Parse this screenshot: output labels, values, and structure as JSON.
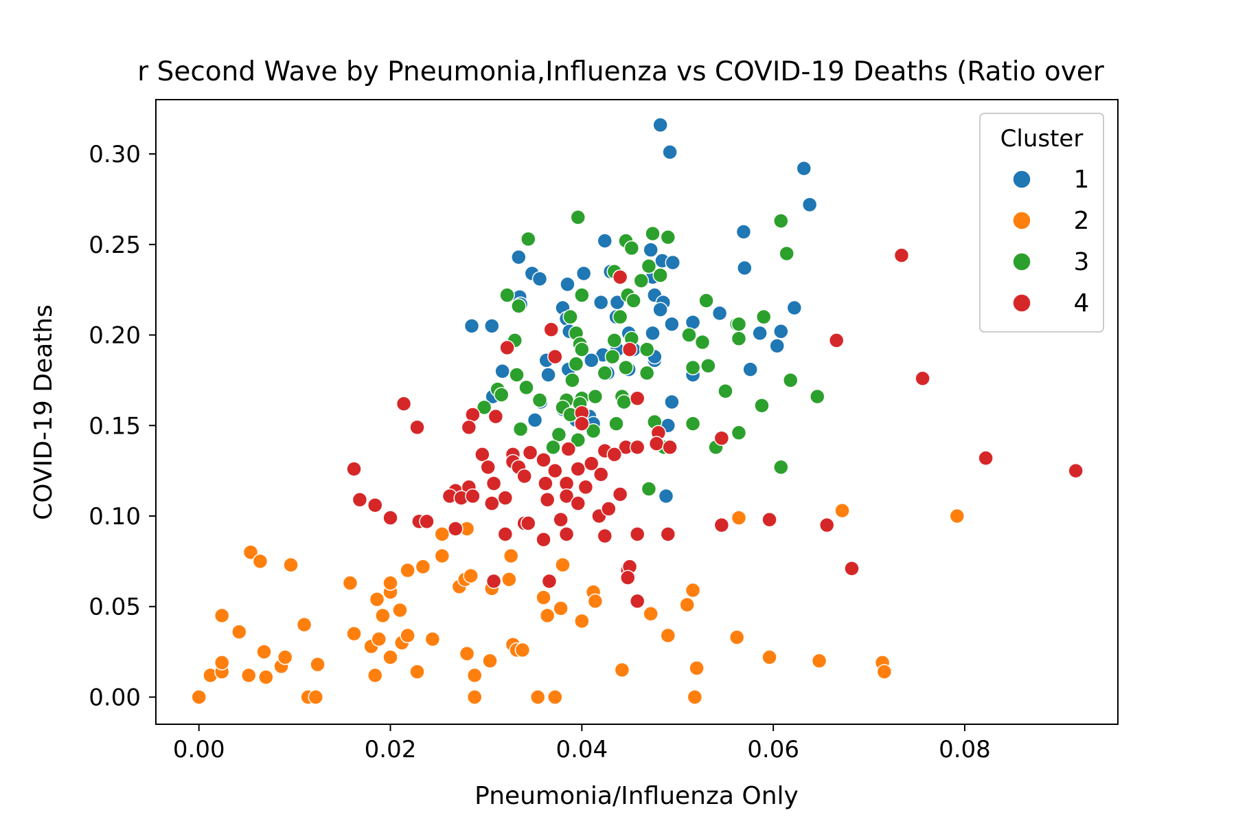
{
  "chart_data": {
    "type": "scatter",
    "title": "r Second Wave by Pneumonia,Influenza vs COVID-19 Deaths (Ratio over",
    "xlabel": "Pneumonia/Influenza Only",
    "ylabel": "COVID-19 Deaths",
    "xlim": [
      -0.0045,
      0.096
    ],
    "ylim": [
      -0.015,
      0.33
    ],
    "xticks": [
      {
        "value": 0.0,
        "label": "0.00"
      },
      {
        "value": 0.02,
        "label": "0.02"
      },
      {
        "value": 0.04,
        "label": "0.04"
      },
      {
        "value": 0.06,
        "label": "0.06"
      },
      {
        "value": 0.08,
        "label": "0.08"
      }
    ],
    "yticks": [
      {
        "value": 0.0,
        "label": "0.00"
      },
      {
        "value": 0.05,
        "label": "0.05"
      },
      {
        "value": 0.1,
        "label": "0.10"
      },
      {
        "value": 0.15,
        "label": "0.15"
      },
      {
        "value": 0.2,
        "label": "0.20"
      },
      {
        "value": 0.25,
        "label": "0.25"
      },
      {
        "value": 0.3,
        "label": "0.30"
      }
    ],
    "grid": false,
    "legend": {
      "title": "Cluster",
      "position": "top-right"
    },
    "series": [
      {
        "name": "1",
        "color": "#1f77b4",
        "points": [
          [
            0.0482,
            0.316
          ],
          [
            0.0492,
            0.301
          ],
          [
            0.0632,
            0.292
          ],
          [
            0.0638,
            0.272
          ],
          [
            0.0569,
            0.257
          ],
          [
            0.0424,
            0.252
          ],
          [
            0.0472,
            0.247
          ],
          [
            0.0334,
            0.243
          ],
          [
            0.057,
            0.237
          ],
          [
            0.0484,
            0.241
          ],
          [
            0.0495,
            0.24
          ],
          [
            0.0474,
            0.232
          ],
          [
            0.0402,
            0.234
          ],
          [
            0.0348,
            0.234
          ],
          [
            0.0356,
            0.231
          ],
          [
            0.0385,
            0.228
          ],
          [
            0.043,
            0.235
          ],
          [
            0.0476,
            0.222
          ],
          [
            0.0335,
            0.221
          ],
          [
            0.0336,
            0.217
          ],
          [
            0.042,
            0.218
          ],
          [
            0.0437,
            0.218
          ],
          [
            0.0485,
            0.218
          ],
          [
            0.038,
            0.215
          ],
          [
            0.0482,
            0.214
          ],
          [
            0.0622,
            0.215
          ],
          [
            0.0544,
            0.212
          ],
          [
            0.0436,
            0.21
          ],
          [
            0.0384,
            0.209
          ],
          [
            0.0494,
            0.206
          ],
          [
            0.0516,
            0.207
          ],
          [
            0.0387,
            0.202
          ],
          [
            0.0449,
            0.201
          ],
          [
            0.0474,
            0.201
          ],
          [
            0.0586,
            0.201
          ],
          [
            0.0608,
            0.202
          ],
          [
            0.0285,
            0.205
          ],
          [
            0.0306,
            0.205
          ],
          [
            0.0604,
            0.194
          ],
          [
            0.0437,
            0.192
          ],
          [
            0.0454,
            0.192
          ],
          [
            0.0422,
            0.189
          ],
          [
            0.0363,
            0.186
          ],
          [
            0.041,
            0.186
          ],
          [
            0.0476,
            0.186
          ],
          [
            0.0476,
            0.188
          ],
          [
            0.0386,
            0.181
          ],
          [
            0.0427,
            0.179
          ],
          [
            0.0449,
            0.181
          ],
          [
            0.0516,
            0.178
          ],
          [
            0.0365,
            0.178
          ],
          [
            0.0576,
            0.181
          ],
          [
            0.0317,
            0.18
          ],
          [
            0.0307,
            0.166
          ],
          [
            0.0494,
            0.163
          ],
          [
            0.0357,
            0.163
          ],
          [
            0.038,
            0.159
          ],
          [
            0.0408,
            0.155
          ],
          [
            0.0394,
            0.153
          ],
          [
            0.0351,
            0.153
          ],
          [
            0.0412,
            0.151
          ],
          [
            0.049,
            0.15
          ],
          [
            0.0488,
            0.111
          ]
        ]
      },
      {
        "name": "2",
        "color": "#ff7f0e",
        "points": [
          [
            0.0,
            0.0
          ],
          [
            0.0012,
            0.012
          ],
          [
            0.0024,
            0.014
          ],
          [
            0.0024,
            0.019
          ],
          [
            0.0024,
            0.045
          ],
          [
            0.0042,
            0.036
          ],
          [
            0.0052,
            0.012
          ],
          [
            0.0054,
            0.08
          ],
          [
            0.0064,
            0.075
          ],
          [
            0.0068,
            0.025
          ],
          [
            0.007,
            0.011
          ],
          [
            0.0086,
            0.017
          ],
          [
            0.009,
            0.022
          ],
          [
            0.0096,
            0.073
          ],
          [
            0.011,
            0.04
          ],
          [
            0.0114,
            0.0
          ],
          [
            0.0122,
            0.0
          ],
          [
            0.0124,
            0.018
          ],
          [
            0.0158,
            0.063
          ],
          [
            0.0162,
            0.035
          ],
          [
            0.018,
            0.028
          ],
          [
            0.0184,
            0.012
          ],
          [
            0.0186,
            0.054
          ],
          [
            0.0188,
            0.032
          ],
          [
            0.0192,
            0.045
          ],
          [
            0.02,
            0.058
          ],
          [
            0.02,
            0.063
          ],
          [
            0.02,
            0.022
          ],
          [
            0.021,
            0.048
          ],
          [
            0.0212,
            0.03
          ],
          [
            0.0218,
            0.034
          ],
          [
            0.0218,
            0.07
          ],
          [
            0.0228,
            0.014
          ],
          [
            0.0234,
            0.072
          ],
          [
            0.0244,
            0.032
          ],
          [
            0.0254,
            0.09
          ],
          [
            0.0254,
            0.078
          ],
          [
            0.0272,
            0.061
          ],
          [
            0.0278,
            0.065
          ],
          [
            0.028,
            0.024
          ],
          [
            0.028,
            0.093
          ],
          [
            0.0284,
            0.067
          ],
          [
            0.0288,
            0.012
          ],
          [
            0.0288,
            0.0
          ],
          [
            0.0304,
            0.02
          ],
          [
            0.0306,
            0.06
          ],
          [
            0.0324,
            0.065
          ],
          [
            0.0326,
            0.078
          ],
          [
            0.0328,
            0.029
          ],
          [
            0.0332,
            0.026
          ],
          [
            0.0338,
            0.026
          ],
          [
            0.0354,
            0.0
          ],
          [
            0.036,
            0.055
          ],
          [
            0.0364,
            0.045
          ],
          [
            0.0372,
            0.0
          ],
          [
            0.0378,
            0.049
          ],
          [
            0.038,
            0.073
          ],
          [
            0.04,
            0.042
          ],
          [
            0.0412,
            0.058
          ],
          [
            0.0414,
            0.053
          ],
          [
            0.0442,
            0.015
          ],
          [
            0.0472,
            0.046
          ],
          [
            0.049,
            0.034
          ],
          [
            0.051,
            0.051
          ],
          [
            0.0516,
            0.059
          ],
          [
            0.0518,
            0.0
          ],
          [
            0.052,
            0.016
          ],
          [
            0.0562,
            0.033
          ],
          [
            0.0564,
            0.099
          ],
          [
            0.0596,
            0.022
          ],
          [
            0.0648,
            0.02
          ],
          [
            0.0672,
            0.103
          ],
          [
            0.0714,
            0.019
          ],
          [
            0.0716,
            0.014
          ],
          [
            0.0792,
            0.1
          ]
        ]
      },
      {
        "name": "3",
        "color": "#2ca02c",
        "points": [
          [
            0.0396,
            0.265
          ],
          [
            0.0344,
            0.253
          ],
          [
            0.0474,
            0.256
          ],
          [
            0.0446,
            0.252
          ],
          [
            0.049,
            0.254
          ],
          [
            0.0452,
            0.248
          ],
          [
            0.0614,
            0.245
          ],
          [
            0.0608,
            0.263
          ],
          [
            0.0434,
            0.235
          ],
          [
            0.047,
            0.238
          ],
          [
            0.0482,
            0.233
          ],
          [
            0.0462,
            0.23
          ],
          [
            0.04,
            0.222
          ],
          [
            0.0322,
            0.222
          ],
          [
            0.0448,
            0.222
          ],
          [
            0.0454,
            0.219
          ],
          [
            0.053,
            0.219
          ],
          [
            0.0334,
            0.216
          ],
          [
            0.0388,
            0.21
          ],
          [
            0.044,
            0.21
          ],
          [
            0.059,
            0.21
          ],
          [
            0.0562,
            0.206
          ],
          [
            0.0564,
            0.206
          ],
          [
            0.0394,
            0.201
          ],
          [
            0.0512,
            0.2
          ],
          [
            0.0564,
            0.198
          ],
          [
            0.033,
            0.197
          ],
          [
            0.0434,
            0.197
          ],
          [
            0.0452,
            0.198
          ],
          [
            0.0398,
            0.195
          ],
          [
            0.0526,
            0.196
          ],
          [
            0.04,
            0.192
          ],
          [
            0.0468,
            0.192
          ],
          [
            0.0432,
            0.188
          ],
          [
            0.0424,
            0.179
          ],
          [
            0.0394,
            0.184
          ],
          [
            0.0516,
            0.182
          ],
          [
            0.0532,
            0.183
          ],
          [
            0.0446,
            0.182
          ],
          [
            0.0468,
            0.179
          ],
          [
            0.0332,
            0.178
          ],
          [
            0.039,
            0.175
          ],
          [
            0.0618,
            0.175
          ],
          [
            0.0342,
            0.171
          ],
          [
            0.0312,
            0.17
          ],
          [
            0.0316,
            0.167
          ],
          [
            0.055,
            0.169
          ],
          [
            0.0646,
            0.166
          ],
          [
            0.0356,
            0.164
          ],
          [
            0.0384,
            0.164
          ],
          [
            0.04,
            0.165
          ],
          [
            0.0414,
            0.166
          ],
          [
            0.0442,
            0.166
          ],
          [
            0.0444,
            0.163
          ],
          [
            0.0298,
            0.16
          ],
          [
            0.038,
            0.16
          ],
          [
            0.0398,
            0.162
          ],
          [
            0.0588,
            0.161
          ],
          [
            0.0388,
            0.156
          ],
          [
            0.0436,
            0.151
          ],
          [
            0.0476,
            0.152
          ],
          [
            0.0516,
            0.151
          ],
          [
            0.0336,
            0.148
          ],
          [
            0.0376,
            0.145
          ],
          [
            0.0412,
            0.147
          ],
          [
            0.0396,
            0.142
          ],
          [
            0.0564,
            0.146
          ],
          [
            0.037,
            0.138
          ],
          [
            0.0486,
            0.138
          ],
          [
            0.054,
            0.138
          ],
          [
            0.0608,
            0.127
          ],
          [
            0.047,
            0.115
          ]
        ]
      },
      {
        "name": "4",
        "color": "#d62728",
        "points": [
          [
            0.0734,
            0.244
          ],
          [
            0.044,
            0.232
          ],
          [
            0.0756,
            0.176
          ],
          [
            0.0666,
            0.197
          ],
          [
            0.0368,
            0.203
          ],
          [
            0.0322,
            0.193
          ],
          [
            0.0372,
            0.188
          ],
          [
            0.045,
            0.192
          ],
          [
            0.04,
            0.157
          ],
          [
            0.0214,
            0.162
          ],
          [
            0.0286,
            0.156
          ],
          [
            0.031,
            0.155
          ],
          [
            0.0228,
            0.149
          ],
          [
            0.0282,
            0.149
          ],
          [
            0.0458,
            0.165
          ],
          [
            0.04,
            0.151
          ],
          [
            0.048,
            0.146
          ],
          [
            0.0546,
            0.143
          ],
          [
            0.0478,
            0.14
          ],
          [
            0.0492,
            0.138
          ],
          [
            0.0446,
            0.138
          ],
          [
            0.0424,
            0.136
          ],
          [
            0.0434,
            0.134
          ],
          [
            0.0458,
            0.138
          ],
          [
            0.0296,
            0.134
          ],
          [
            0.0328,
            0.134
          ],
          [
            0.0346,
            0.135
          ],
          [
            0.036,
            0.131
          ],
          [
            0.0386,
            0.137
          ],
          [
            0.041,
            0.129
          ],
          [
            0.0302,
            0.127
          ],
          [
            0.0328,
            0.13
          ],
          [
            0.0334,
            0.127
          ],
          [
            0.0372,
            0.125
          ],
          [
            0.0396,
            0.126
          ],
          [
            0.042,
            0.123
          ],
          [
            0.0822,
            0.132
          ],
          [
            0.0916,
            0.125
          ],
          [
            0.0162,
            0.126
          ],
          [
            0.0268,
            0.114
          ],
          [
            0.0282,
            0.116
          ],
          [
            0.0308,
            0.118
          ],
          [
            0.034,
            0.122
          ],
          [
            0.0362,
            0.118
          ],
          [
            0.0384,
            0.118
          ],
          [
            0.0404,
            0.116
          ],
          [
            0.044,
            0.112
          ],
          [
            0.0262,
            0.111
          ],
          [
            0.0274,
            0.11
          ],
          [
            0.0286,
            0.111
          ],
          [
            0.0306,
            0.107
          ],
          [
            0.032,
            0.11
          ],
          [
            0.0364,
            0.109
          ],
          [
            0.0384,
            0.111
          ],
          [
            0.0396,
            0.107
          ],
          [
            0.0168,
            0.109
          ],
          [
            0.0184,
            0.106
          ],
          [
            0.02,
            0.099
          ],
          [
            0.023,
            0.097
          ],
          [
            0.0238,
            0.097
          ],
          [
            0.0268,
            0.093
          ],
          [
            0.032,
            0.09
          ],
          [
            0.034,
            0.096
          ],
          [
            0.0344,
            0.096
          ],
          [
            0.0378,
            0.098
          ],
          [
            0.0384,
            0.09
          ],
          [
            0.0418,
            0.1
          ],
          [
            0.0428,
            0.104
          ],
          [
            0.0424,
            0.089
          ],
          [
            0.0458,
            0.09
          ],
          [
            0.049,
            0.09
          ],
          [
            0.036,
            0.087
          ],
          [
            0.0546,
            0.095
          ],
          [
            0.0596,
            0.098
          ],
          [
            0.0656,
            0.095
          ],
          [
            0.0682,
            0.071
          ],
          [
            0.0308,
            0.064
          ],
          [
            0.0366,
            0.064
          ],
          [
            0.0448,
            0.07
          ],
          [
            0.045,
            0.072
          ],
          [
            0.0448,
            0.066
          ],
          [
            0.0458,
            0.053
          ]
        ]
      }
    ]
  }
}
